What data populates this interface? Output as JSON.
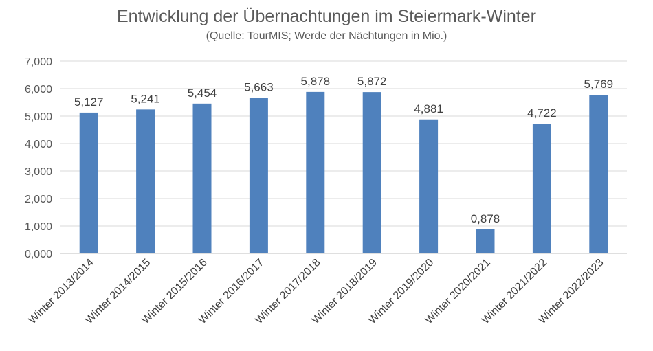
{
  "chart_data": {
    "type": "bar",
    "title": "Entwicklung der Übernachtungen im Steiermark-Winter",
    "subtitle": "(Quelle: TourMIS; Werde der Nächtungen in Mio.)",
    "xlabel": "",
    "ylabel": "",
    "ylim": [
      0,
      7
    ],
    "yticks": [
      "0,000",
      "1,000",
      "2,000",
      "3,000",
      "4,000",
      "5,000",
      "6,000",
      "7,000"
    ],
    "categories": [
      "Winter 2013/2014",
      "Winter 2014/2015",
      "Winter 2015/2016",
      "Winter 2016/2017",
      "Winter 2017/2018",
      "Winter 2018/2019",
      "Winter 2019/2020",
      "Winter 2020/2021",
      "Winter 2021/2022",
      "Winter 2022/2023"
    ],
    "values": [
      5.127,
      5.241,
      5.454,
      5.663,
      5.878,
      5.872,
      4.881,
      0.878,
      4.722,
      5.769
    ],
    "data_labels": [
      "5,127",
      "5,241",
      "5,454",
      "5,663",
      "5,878",
      "5,872",
      "4,881",
      "0,878",
      "4,722",
      "5,769"
    ],
    "grid": true,
    "legend": "none",
    "colors": {
      "bar": "#4f81bd",
      "grid": "#d9d9d9",
      "text": "#595959"
    }
  }
}
